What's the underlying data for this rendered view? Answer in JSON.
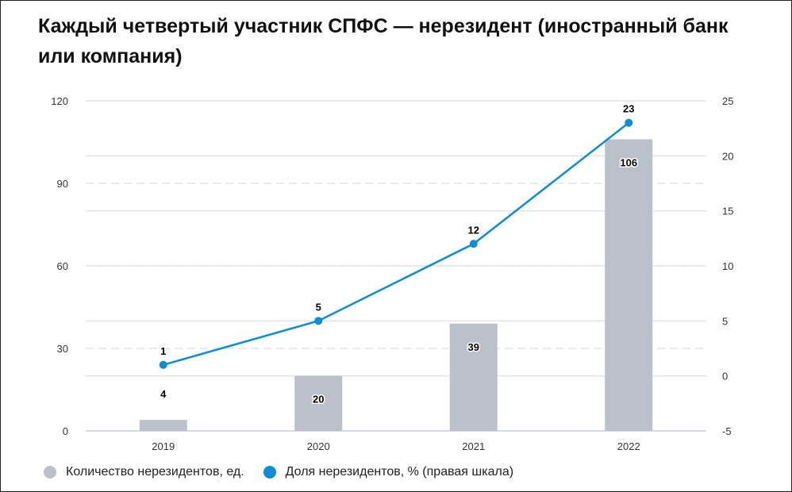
{
  "title": "Каждый четвертый участник СПФС — нерезидент (иностранный банк или компания)",
  "chart_data": {
    "type": "bar+line",
    "title": "Каждый четвертый участник СПФС — нерезидент (иностранный банк или компания)",
    "categories": [
      "2019",
      "2020",
      "2021",
      "2022"
    ],
    "series": [
      {
        "name": "Количество нерезидентов, ед.",
        "type": "bar",
        "axis": "left",
        "values": [
          4,
          20,
          39,
          106
        ],
        "color": "#bbc0cb"
      },
      {
        "name": "Доля нерезидентов, % (правая шкала)",
        "type": "line",
        "axis": "right",
        "values": [
          1,
          5,
          12,
          23
        ],
        "color": "#0a8ed8"
      }
    ],
    "y_left": {
      "lim": [
        0,
        120
      ],
      "ticks": [
        0,
        30,
        60,
        90,
        120
      ]
    },
    "y_right": {
      "lim": [
        -5,
        25
      ],
      "ticks": [
        -5,
        0,
        5,
        10,
        15,
        20,
        25
      ]
    },
    "grid": true,
    "legend_position": "bottom-left"
  }
}
